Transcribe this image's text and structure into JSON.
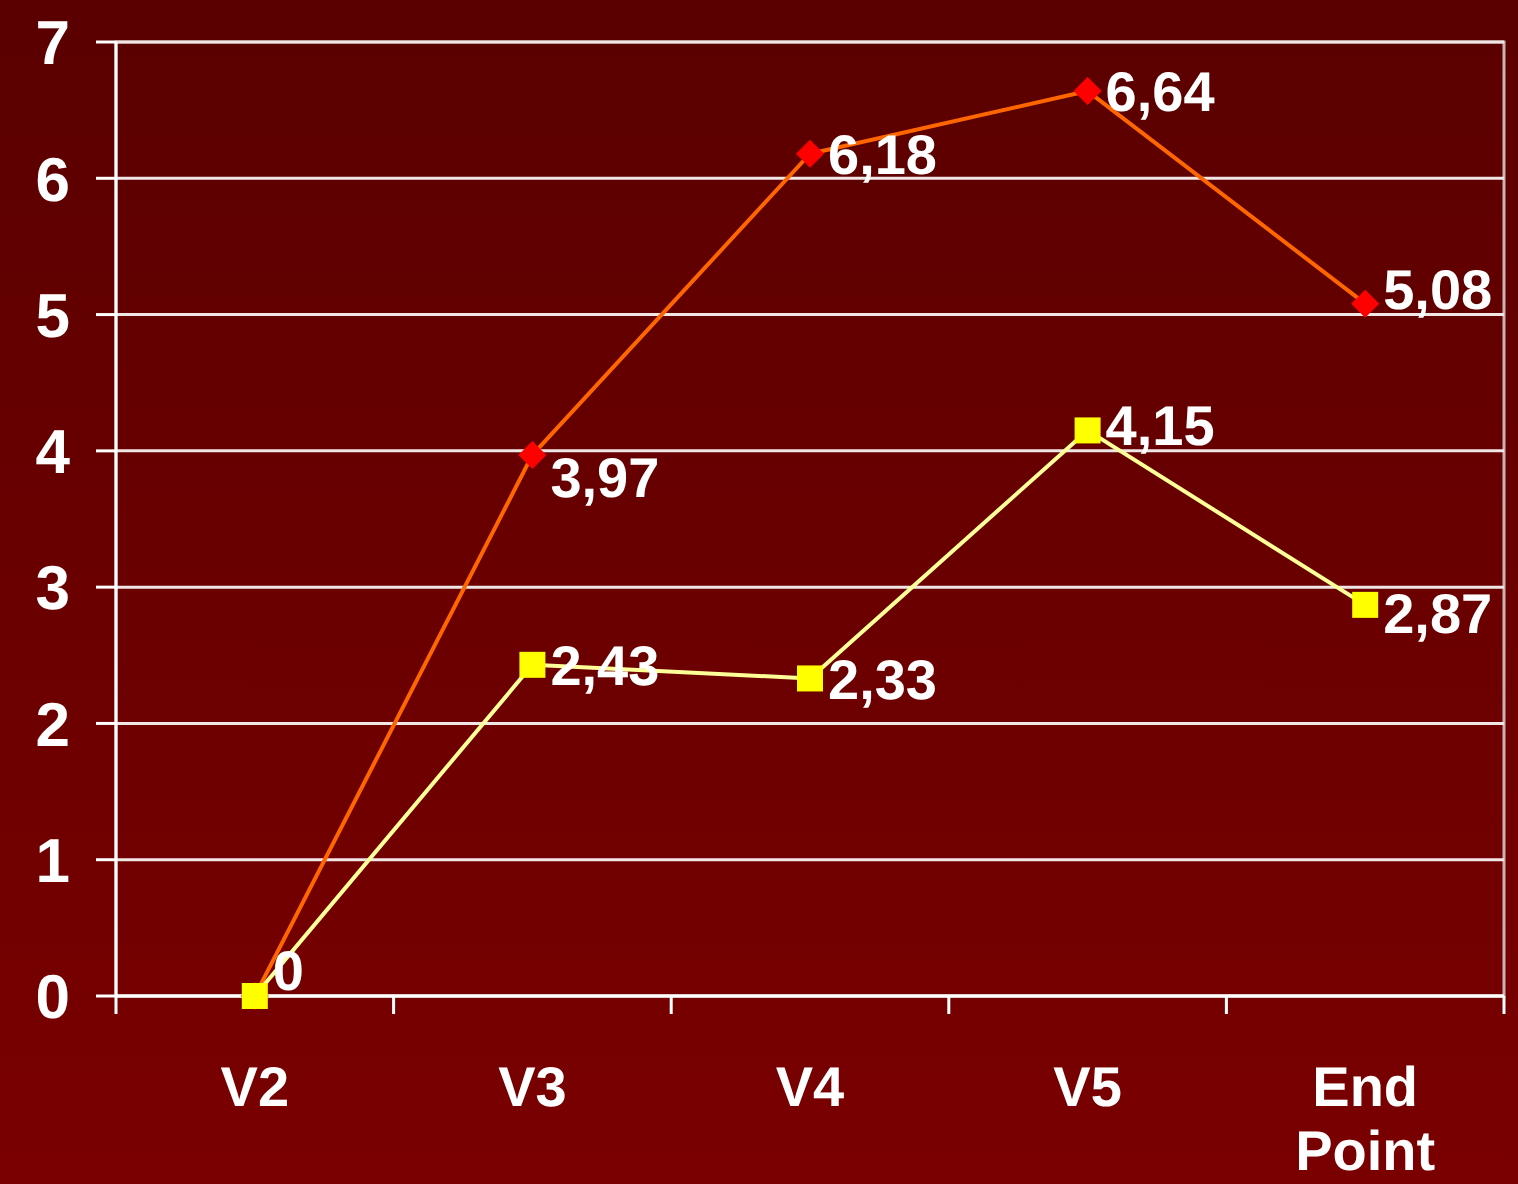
{
  "chart_data": {
    "type": "line",
    "categories": [
      "V2",
      "V3",
      "V4",
      "V5",
      "End Point"
    ],
    "series": [
      {
        "color": "#ff6600",
        "colors": [
          "#ff0000",
          "#ff0000",
          "#ff0000",
          "#ff0000",
          "#ff0000"
        ],
        "marker": "diamond",
        "values": [
          0,
          3.97,
          6.18,
          6.64,
          5.08
        ],
        "value_labels": [
          null,
          "3,97",
          "6,18",
          "6,64",
          "5,08"
        ]
      },
      {
        "color": "#ffff99",
        "colors": [
          "#ffff00",
          "#ffff00",
          "#ffff00",
          "#ffff00",
          "#ffff00"
        ],
        "marker": "square",
        "values": [
          0,
          2.43,
          2.33,
          4.15,
          2.87
        ],
        "value_labels": [
          "0",
          "2,43",
          "2,33",
          "4,15",
          "2,87"
        ]
      }
    ],
    "ylim": [
      0,
      7
    ],
    "yticks": [
      0,
      1,
      2,
      3,
      4,
      5,
      6,
      7
    ],
    "grid": "y",
    "line_style": "solid"
  }
}
